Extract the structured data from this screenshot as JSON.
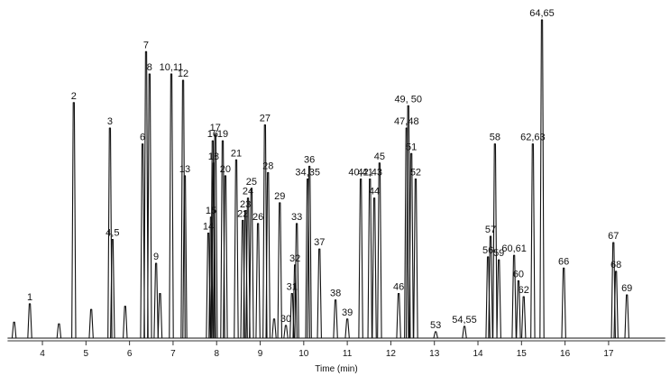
{
  "chart_data": {
    "type": "chromatogram",
    "x_label": "Time (min)",
    "xlim": [
      3.2,
      18.3
    ],
    "ylim": [
      0,
      100
    ],
    "xticks": [
      4,
      5,
      6,
      7,
      8,
      9,
      10,
      11,
      12,
      13,
      14,
      15,
      16,
      17
    ],
    "color": "#111111",
    "x": [
      3.35,
      3.71,
      4.38,
      4.72,
      5.12,
      5.55,
      5.61,
      5.9,
      6.3,
      6.38,
      6.46,
      6.61,
      6.7,
      6.96,
      7.23,
      7.27,
      7.81,
      7.87,
      7.91,
      7.97,
      7.93,
      8.14,
      8.2,
      8.45,
      8.6,
      8.66,
      8.72,
      8.8,
      8.95,
      9.11,
      9.18,
      9.32,
      9.45,
      9.59,
      9.73,
      9.8,
      9.84,
      10.09,
      10.13,
      10.36,
      10.73,
      11.0,
      11.31,
      11.52,
      11.62,
      11.74,
      12.18,
      12.36,
      12.4,
      12.47,
      12.57,
      13.03,
      13.69,
      14.23,
      14.29,
      14.39,
      14.48,
      14.83,
      14.93,
      15.05,
      15.26,
      15.47,
      15.97,
      17.11,
      17.17,
      17.42
    ],
    "values": [
      5,
      10.8,
      4.5,
      74,
      9,
      66,
      31,
      10,
      61,
      90,
      83,
      23.5,
      14,
      83,
      81,
      51,
      33,
      38,
      62,
      64,
      55,
      62,
      51,
      56,
      37,
      40,
      44,
      47,
      36,
      67,
      52,
      6,
      42.5,
      4,
      14,
      23,
      36,
      50,
      54,
      28,
      12,
      6,
      50,
      50,
      44,
      55,
      14,
      66,
      73,
      58,
      50,
      2,
      3.7,
      25.5,
      32,
      61,
      24.6,
      26,
      18,
      13,
      61,
      100,
      22,
      30,
      21,
      13.6
    ],
    "labels": [
      null,
      "1",
      null,
      "2",
      null,
      "3",
      "4,5",
      null,
      "6",
      "7",
      "8",
      "9",
      null,
      "10,11",
      "12",
      "13",
      "14",
      "15",
      "16",
      "17",
      "18",
      "19",
      "20",
      "21",
      "22",
      "23",
      "24",
      "25",
      "26",
      "27",
      "28",
      null,
      "29",
      "30",
      "31",
      "32",
      "33",
      "34,35",
      "36",
      "37",
      "38",
      "39",
      "40,41",
      "42,43",
      "44",
      "45",
      "46",
      "47,48",
      "49, 50",
      "51",
      "52",
      "53",
      "54,55",
      "56",
      "57",
      "58",
      "59",
      "60,61",
      "60",
      "62",
      "62,63",
      "64,65",
      "66",
      "67",
      "68",
      "69"
    ]
  }
}
